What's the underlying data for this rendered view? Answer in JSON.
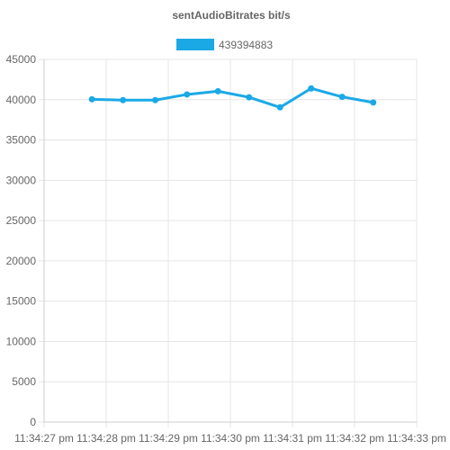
{
  "chart_data": {
    "type": "line",
    "title": "sentAudioBitrates bit/s",
    "xlabel": "",
    "ylabel": "",
    "x_ticks": [
      "11:34:27 pm",
      "11:34:28 pm",
      "11:34:29 pm",
      "11:34:30 pm",
      "11:34:31 pm",
      "11:34:32 pm",
      "11:34:33 pm"
    ],
    "x_range_seconds": [
      0,
      6
    ],
    "y_ticks": [
      0,
      5000,
      10000,
      15000,
      20000,
      25000,
      30000,
      35000,
      40000,
      45000
    ],
    "ylim": [
      0,
      45000
    ],
    "grid": true,
    "legend_position": "top",
    "series": [
      {
        "name": "439394883",
        "color": "#1ba9e6",
        "x_seconds": [
          0.77,
          1.27,
          1.79,
          2.3,
          2.8,
          3.3,
          3.8,
          4.3,
          4.8,
          5.3
        ],
        "values": [
          40050,
          39950,
          39950,
          40650,
          41050,
          40300,
          39050,
          41400,
          40350,
          39650
        ]
      }
    ]
  }
}
